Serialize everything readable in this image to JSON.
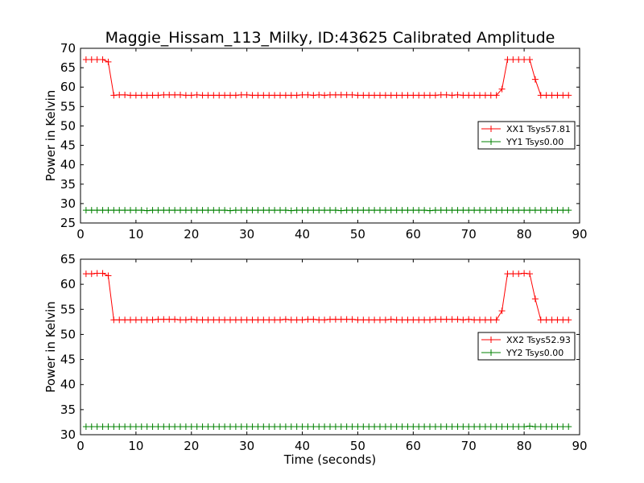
{
  "chart_data": {
    "title": "Maggie_Hissam_113_Milky, ID:43625 Calibrated Amplitude",
    "xlabel": "Time (seconds)",
    "colors": {
      "red": "#ff0000",
      "green": "#008000",
      "axis": "#000000"
    },
    "panels": [
      {
        "type": "line",
        "ylabel": "Power in Kelvin",
        "xlim": [
          0,
          90
        ],
        "ylim": [
          25,
          70
        ],
        "xticks": [
          "0",
          "10",
          "20",
          "30",
          "40",
          "50",
          "60",
          "70",
          "80",
          "90"
        ],
        "yticks": [
          "25",
          "30",
          "35",
          "40",
          "45",
          "50",
          "55",
          "60",
          "65",
          "70"
        ],
        "legend_position": "center-right",
        "series": [
          {
            "name": "XX1 Tsys57.81",
            "color": "#ff0000",
            "x": [
              1,
              2,
              3,
              4,
              5,
              6,
              7,
              8,
              9,
              10,
              11,
              12,
              13,
              14,
              15,
              16,
              17,
              18,
              19,
              20,
              21,
              22,
              23,
              24,
              25,
              26,
              27,
              28,
              29,
              30,
              31,
              32,
              33,
              34,
              35,
              36,
              37,
              38,
              39,
              40,
              41,
              42,
              43,
              44,
              45,
              46,
              47,
              48,
              49,
              50,
              51,
              52,
              53,
              54,
              55,
              56,
              57,
              58,
              59,
              60,
              61,
              62,
              63,
              64,
              65,
              66,
              67,
              68,
              69,
              70,
              71,
              72,
              73,
              74,
              75,
              76,
              77,
              78,
              79,
              80,
              81,
              82,
              83,
              84,
              85,
              86,
              87,
              88
            ],
            "values": [
              67.1,
              67.1,
              67.1,
              67.1,
              66.5,
              57.9,
              58.0,
              58.0,
              57.9,
              57.9,
              57.9,
              57.9,
              57.9,
              57.9,
              58.0,
              58.0,
              58.0,
              58.0,
              57.9,
              57.9,
              58.0,
              57.9,
              57.9,
              57.9,
              57.9,
              57.9,
              57.9,
              57.9,
              58.0,
              58.0,
              57.9,
              57.9,
              57.9,
              57.9,
              57.9,
              57.9,
              57.9,
              57.9,
              57.9,
              58.0,
              58.0,
              57.9,
              58.0,
              57.9,
              58.0,
              58.0,
              58.0,
              58.0,
              58.0,
              57.9,
              57.9,
              57.9,
              57.9,
              57.9,
              57.9,
              57.9,
              57.9,
              57.9,
              57.9,
              57.9,
              57.9,
              57.9,
              57.9,
              57.9,
              58.0,
              58.0,
              57.9,
              58.0,
              57.9,
              57.9,
              57.9,
              57.9,
              57.9,
              57.9,
              57.9,
              59.5,
              67.1,
              67.1,
              67.1,
              67.1,
              67.1,
              62.0,
              57.9,
              57.9,
              57.9,
              57.9,
              57.9,
              57.9
            ]
          },
          {
            "name": "YY1 Tsys0.00",
            "color": "#008000",
            "x": [
              1,
              2,
              3,
              4,
              5,
              6,
              7,
              8,
              9,
              10,
              11,
              12,
              13,
              14,
              15,
              16,
              17,
              18,
              19,
              20,
              21,
              22,
              23,
              24,
              25,
              26,
              27,
              28,
              29,
              30,
              31,
              32,
              33,
              34,
              35,
              36,
              37,
              38,
              39,
              40,
              41,
              42,
              43,
              44,
              45,
              46,
              47,
              48,
              49,
              50,
              51,
              52,
              53,
              54,
              55,
              56,
              57,
              58,
              59,
              60,
              61,
              62,
              63,
              64,
              65,
              66,
              67,
              68,
              69,
              70,
              71,
              72,
              73,
              74,
              75,
              76,
              77,
              78,
              79,
              80,
              81,
              82,
              83,
              84,
              85,
              86,
              87,
              88
            ],
            "values": [
              28.3,
              28.3,
              28.3,
              28.3,
              28.3,
              28.3,
              28.3,
              28.3,
              28.3,
              28.3,
              28.3,
              28.2,
              28.3,
              28.3,
              28.3,
              28.3,
              28.3,
              28.3,
              28.3,
              28.3,
              28.3,
              28.3,
              28.3,
              28.3,
              28.3,
              28.3,
              28.2,
              28.3,
              28.3,
              28.3,
              28.3,
              28.3,
              28.3,
              28.3,
              28.3,
              28.3,
              28.3,
              28.2,
              28.3,
              28.3,
              28.3,
              28.3,
              28.3,
              28.3,
              28.3,
              28.3,
              28.2,
              28.3,
              28.3,
              28.3,
              28.3,
              28.3,
              28.3,
              28.3,
              28.3,
              28.3,
              28.3,
              28.3,
              28.3,
              28.3,
              28.3,
              28.3,
              28.2,
              28.3,
              28.3,
              28.3,
              28.3,
              28.3,
              28.3,
              28.3,
              28.3,
              28.3,
              28.3,
              28.3,
              28.3,
              28.3,
              28.3,
              28.3,
              28.3,
              28.3,
              28.3,
              28.3,
              28.3,
              28.3,
              28.3,
              28.3,
              28.3,
              28.3
            ]
          }
        ]
      },
      {
        "type": "line",
        "ylabel": "Power in Kelvin",
        "xlim": [
          0,
          90
        ],
        "ylim": [
          30,
          65
        ],
        "xticks": [
          "0",
          "10",
          "20",
          "30",
          "40",
          "50",
          "60",
          "70",
          "80",
          "90"
        ],
        "yticks": [
          "30",
          "35",
          "40",
          "45",
          "50",
          "55",
          "60",
          "65"
        ],
        "legend_position": "center-right",
        "series": [
          {
            "name": "XX2 Tsys52.93",
            "color": "#ff0000",
            "x": [
              1,
              2,
              3,
              4,
              5,
              6,
              7,
              8,
              9,
              10,
              11,
              12,
              13,
              14,
              15,
              16,
              17,
              18,
              19,
              20,
              21,
              22,
              23,
              24,
              25,
              26,
              27,
              28,
              29,
              30,
              31,
              32,
              33,
              34,
              35,
              36,
              37,
              38,
              39,
              40,
              41,
              42,
              43,
              44,
              45,
              46,
              47,
              48,
              49,
              50,
              51,
              52,
              53,
              54,
              55,
              56,
              57,
              58,
              59,
              60,
              61,
              62,
              63,
              64,
              65,
              66,
              67,
              68,
              69,
              70,
              71,
              72,
              73,
              74,
              75,
              76,
              77,
              78,
              79,
              80,
              81,
              82,
              83,
              84,
              85,
              86,
              87,
              88
            ],
            "values": [
              62.1,
              62.1,
              62.2,
              62.2,
              61.7,
              52.9,
              52.9,
              52.9,
              52.9,
              52.9,
              52.9,
              52.9,
              52.9,
              53.0,
              53.0,
              53.0,
              53.0,
              52.9,
              52.9,
              53.0,
              52.9,
              52.9,
              52.9,
              52.9,
              52.9,
              52.9,
              52.9,
              52.9,
              52.9,
              52.9,
              52.9,
              52.9,
              52.9,
              52.9,
              52.9,
              52.9,
              53.0,
              52.9,
              52.9,
              52.9,
              53.0,
              53.0,
              52.9,
              52.9,
              53.0,
              53.0,
              53.0,
              53.0,
              53.0,
              52.9,
              52.9,
              52.9,
              52.9,
              52.9,
              52.9,
              53.0,
              52.9,
              52.9,
              52.9,
              52.9,
              52.9,
              52.9,
              52.9,
              53.0,
              53.0,
              53.0,
              53.0,
              53.0,
              52.9,
              53.0,
              52.9,
              52.9,
              52.9,
              52.9,
              52.9,
              54.7,
              62.1,
              62.1,
              62.1,
              62.2,
              62.1,
              57.1,
              52.9,
              52.9,
              52.9,
              52.9,
              52.9,
              52.9
            ]
          },
          {
            "name": "YY2 Tsys0.00",
            "color": "#008000",
            "x": [
              1,
              2,
              3,
              4,
              5,
              6,
              7,
              8,
              9,
              10,
              11,
              12,
              13,
              14,
              15,
              16,
              17,
              18,
              19,
              20,
              21,
              22,
              23,
              24,
              25,
              26,
              27,
              28,
              29,
              30,
              31,
              32,
              33,
              34,
              35,
              36,
              37,
              38,
              39,
              40,
              41,
              42,
              43,
              44,
              45,
              46,
              47,
              48,
              49,
              50,
              51,
              52,
              53,
              54,
              55,
              56,
              57,
              58,
              59,
              60,
              61,
              62,
              63,
              64,
              65,
              66,
              67,
              68,
              69,
              70,
              71,
              72,
              73,
              74,
              75,
              76,
              77,
              78,
              79,
              80,
              81,
              82,
              83,
              84,
              85,
              86,
              87,
              88
            ],
            "values": [
              31.6,
              31.6,
              31.6,
              31.6,
              31.6,
              31.6,
              31.6,
              31.6,
              31.6,
              31.6,
              31.6,
              31.6,
              31.6,
              31.6,
              31.6,
              31.6,
              31.6,
              31.6,
              31.6,
              31.6,
              31.6,
              31.6,
              31.6,
              31.6,
              31.6,
              31.6,
              31.6,
              31.6,
              31.6,
              31.6,
              31.6,
              31.6,
              31.6,
              31.6,
              31.6,
              31.6,
              31.6,
              31.6,
              31.6,
              31.6,
              31.6,
              31.6,
              31.6,
              31.6,
              31.6,
              31.6,
              31.6,
              31.6,
              31.6,
              31.6,
              31.6,
              31.6,
              31.6,
              31.6,
              31.6,
              31.6,
              31.6,
              31.6,
              31.6,
              31.6,
              31.6,
              31.6,
              31.6,
              31.6,
              31.6,
              31.6,
              31.6,
              31.6,
              31.6,
              31.6,
              31.6,
              31.6,
              31.6,
              31.6,
              31.6,
              31.6,
              31.6,
              31.6,
              31.6,
              31.6,
              31.7,
              31.6,
              31.6,
              31.6,
              31.6,
              31.6,
              31.6,
              31.6
            ]
          }
        ]
      }
    ]
  }
}
